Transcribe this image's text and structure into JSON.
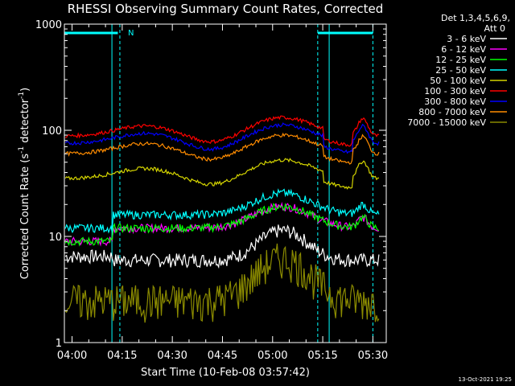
{
  "chart_data": {
    "type": "line",
    "title": "RHESSI Observing Summary Count Rates, Corrected",
    "xlabel": "Start Time (10-Feb-08 03:57:42)",
    "ylabel_main": "Corrected Count Rate (s",
    "ylabel_sup1": "-1",
    "ylabel_mid": " detector",
    "ylabel_sup2": "-1",
    "ylabel_end": ")",
    "y_scale": "log",
    "ylim": [
      1,
      1000
    ],
    "x_ticks": [
      "04:00",
      "04:15",
      "04:30",
      "04:45",
      "05:00",
      "05:15",
      "05:30"
    ],
    "x_tick_minutes": [
      0,
      15,
      30,
      45,
      60,
      75,
      90
    ],
    "xlim_minutes": [
      -2.3,
      94
    ],
    "y_ticks": [
      {
        "label": "1",
        "value": 1
      },
      {
        "label": "10",
        "value": 10
      },
      {
        "label": "100",
        "value": 100
      },
      {
        "label": "1000",
        "value": 1000
      }
    ],
    "legend_header": [
      "Det 1,3,4,5,6,9,",
      "Att 0"
    ],
    "legend_position": "right",
    "night_marker": "N",
    "night_minutes": [
      14.3,
      73.5
    ],
    "saa_bar_minutes": [
      [
        -2.3,
        13.7
      ],
      [
        73.5,
        90
      ]
    ],
    "time_grid_minutes": [
      [
        10,
        16
      ],
      [
        75,
        90
      ]
    ],
    "series": [
      {
        "name": "3 - 6 keV",
        "color": "#ffffff",
        "base": 6
      },
      {
        "name": "6 - 12 keV",
        "color": "#ff00ff",
        "base": 12
      },
      {
        "name": "12 - 25 keV",
        "color": "#00ff00",
        "base": 12
      },
      {
        "name": "25 - 50 keV",
        "color": "#00ffff",
        "base": 16
      },
      {
        "name": "50 - 100 keV",
        "color": "#d4d400",
        "base": 35
      },
      {
        "name": "100 - 300 keV",
        "color": "#ff0000",
        "base": 88
      },
      {
        "name": "300 - 800 keV",
        "color": "#0000ff",
        "base": 75
      },
      {
        "name": "800 - 7000 keV",
        "color": "#ff8c00",
        "base": 60
      },
      {
        "name": "7000 - 15000 keV",
        "color": "#8b8b00",
        "base": 2.5
      }
    ],
    "timestamp": "13-Oct-2021 19:25"
  }
}
